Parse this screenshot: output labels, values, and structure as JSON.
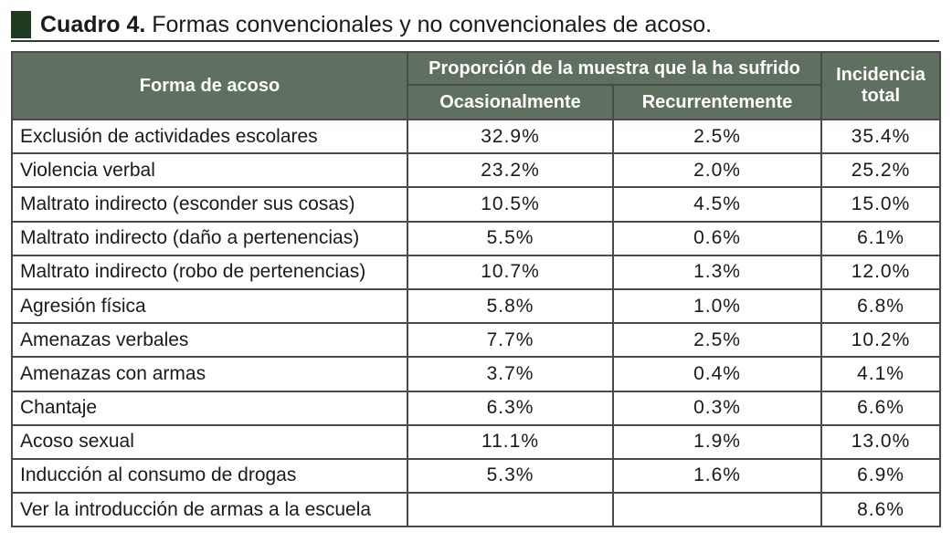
{
  "caption": {
    "label": "Cuadro 4.",
    "title": "Formas convencionales y no convencionales de acoso."
  },
  "table": {
    "headers": {
      "form": "Forma de acoso",
      "proportion": "Proporción de la muestra que la ha sufrido",
      "occasional": "Ocasionalmente",
      "recurrent": "Recurrentemente",
      "incidence": "Incidencia total"
    },
    "rows": [
      {
        "form": "Exclusión de actividades escolares",
        "occasional": "32.9%",
        "recurrent": "2.5%",
        "total": "35.4%"
      },
      {
        "form": "Violencia verbal",
        "occasional": "23.2%",
        "recurrent": "2.0%",
        "total": "25.2%"
      },
      {
        "form": "Maltrato indirecto (esconder sus cosas)",
        "occasional": "10.5%",
        "recurrent": "4.5%",
        "total": "15.0%"
      },
      {
        "form": "Maltrato indirecto (daño a pertenencias)",
        "occasional": "5.5%",
        "recurrent": "0.6%",
        "total": "6.1%"
      },
      {
        "form": "Maltrato indirecto (robo de pertenencias)",
        "occasional": "10.7%",
        "recurrent": "1.3%",
        "total": "12.0%"
      },
      {
        "form": "Agresión física",
        "occasional": "5.8%",
        "recurrent": "1.0%",
        "total": "6.8%"
      },
      {
        "form": "Amenazas verbales",
        "occasional": "7.7%",
        "recurrent": "2.5%",
        "total": "10.2%"
      },
      {
        "form": "Amenazas con armas",
        "occasional": "3.7%",
        "recurrent": "0.4%",
        "total": "4.1%"
      },
      {
        "form": "Chantaje",
        "occasional": "6.3%",
        "recurrent": "0.3%",
        "total": "6.6%"
      },
      {
        "form": "Acoso sexual",
        "occasional": "11.1%",
        "recurrent": "1.9%",
        "total": "13.0%"
      },
      {
        "form": "Inducción al consumo de drogas",
        "occasional": "5.3%",
        "recurrent": "1.6%",
        "total": "6.9%"
      },
      {
        "form": "Ver la introducción de armas a la escuela",
        "occasional": "",
        "recurrent": "",
        "total": "8.6%"
      }
    ]
  }
}
